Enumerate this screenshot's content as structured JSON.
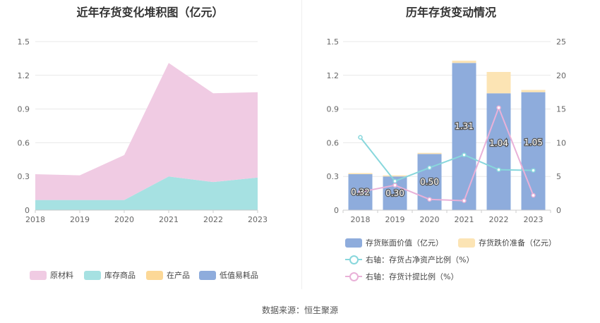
{
  "left_chart": {
    "title": "近年存货变化堆积图（亿元）",
    "legend": [
      "原材料",
      "库存商品",
      "在产品",
      "低值易耗品"
    ],
    "colors": {
      "raw_materials": "#f0cbe3",
      "finished_goods": "#a6e1e2",
      "wip": "#fcd897",
      "low_value": "#8eacdc"
    }
  },
  "right_chart": {
    "title": "历年存货变动情况",
    "legend": {
      "book_value": "存货账面价值（亿元）",
      "impairment": "存货跌价准备（亿元）",
      "ratio_net_assets": "右轴：存货占净资产比例（%）",
      "provision_ratio": "右轴：存货计提比例（%）"
    },
    "colors": {
      "book_value": "#8eacdc",
      "impairment": "#fce4b4",
      "ratio_net_assets": "#88d7dc",
      "provision_ratio": "#e9b1d8"
    }
  },
  "chart_data": [
    {
      "type": "area",
      "title": "近年存货变化堆积图（亿元）",
      "stacked": true,
      "categories": [
        "2018",
        "2019",
        "2020",
        "2021",
        "2022",
        "2023"
      ],
      "ylim": [
        0,
        1.5
      ],
      "yticks": [
        "0",
        "0.3",
        "0.6",
        "0.9",
        "1.2",
        "1.5"
      ],
      "series": [
        {
          "name": "库存商品",
          "values": [
            0.09,
            0.09,
            0.09,
            0.3,
            0.25,
            0.29
          ]
        },
        {
          "name": "原材料",
          "values": [
            0.23,
            0.22,
            0.4,
            1.01,
            0.79,
            0.76
          ]
        },
        {
          "name": "在产品",
          "values": [
            0,
            0,
            0,
            0,
            0,
            0
          ]
        },
        {
          "name": "低值易耗品",
          "values": [
            0,
            0,
            0,
            0,
            0,
            0
          ]
        }
      ],
      "grid": true,
      "legend_position": "bottom"
    },
    {
      "type": "bar",
      "title": "历年存货变动情况",
      "categories": [
        "2018",
        "2019",
        "2020",
        "2021",
        "2022",
        "2023"
      ],
      "ylim": [
        0,
        1.5
      ],
      "yticks": [
        "0",
        "0.3",
        "0.6",
        "0.9",
        "1.2",
        "1.5"
      ],
      "y2lim": [
        0,
        25
      ],
      "y2ticks": [
        "0",
        "5",
        "10",
        "15",
        "20",
        "25"
      ],
      "series": [
        {
          "name": "存货账面价值（亿元）",
          "values": [
            0.32,
            0.3,
            0.5,
            1.31,
            1.04,
            1.05
          ],
          "labels": [
            "0.32",
            "0.30",
            "0.50",
            "1.31",
            "1.04",
            "1.05"
          ]
        },
        {
          "name": "存货跌价准备（亿元）",
          "values": [
            0.01,
            0.01,
            0.01,
            0.02,
            0.19,
            0.02
          ]
        },
        {
          "name": "右轴：存货占净资产比例（%）",
          "axis": "right",
          "values": [
            10.8,
            4.3,
            6.3,
            8.2,
            6.0,
            5.9
          ]
        },
        {
          "name": "右轴：存货计提比例（%）",
          "axis": "right",
          "values": [
            2.7,
            3.7,
            1.6,
            1.4,
            15.2,
            2.2
          ]
        }
      ],
      "grid": true,
      "legend_position": "bottom"
    }
  ],
  "source": "数据来源：恒生聚源"
}
